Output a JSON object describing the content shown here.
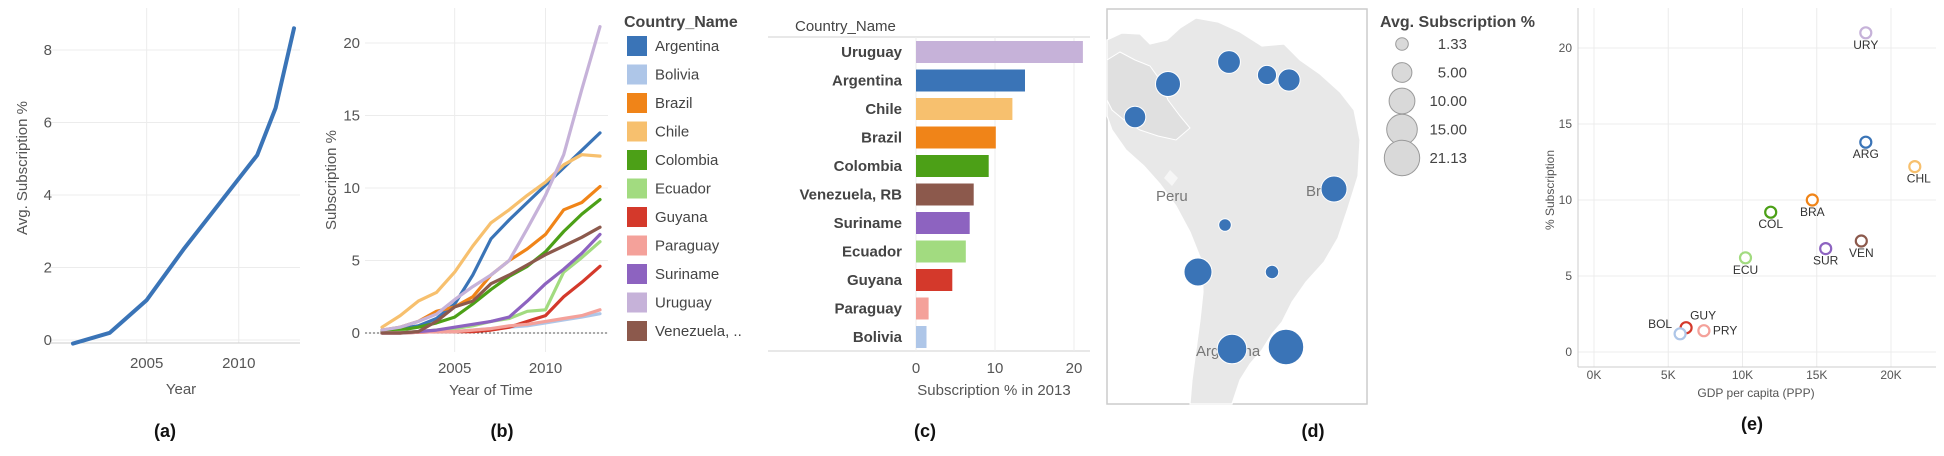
{
  "colors": {
    "Argentina": "#3a74b7",
    "Bolivia": "#aec6e8",
    "Brazil": "#f08418",
    "Chile": "#f7c06e",
    "Colombia": "#4ca017",
    "Ecuador": "#a2db80",
    "Guyana": "#d4392b",
    "Paraguay": "#f4a19a",
    "Suriname": "#8d63c0",
    "Uruguay": "#c6b2d9",
    "Venezuela": "#8c594c",
    "single": "#3a74b7",
    "map_bubble": "#3a74b7"
  },
  "chart_data": [
    {
      "id": "a",
      "type": "line",
      "panel_label": "(a)",
      "xlabel": "Year",
      "ylabel": "Avg. Subscription %",
      "x_ticks": [
        "2005",
        "2010"
      ],
      "y_ticks": [
        "0",
        "2",
        "4",
        "6",
        "8"
      ],
      "xlim": [
        2001,
        2013
      ],
      "ylim": [
        0,
        9
      ],
      "x": [
        2001,
        2003,
        2005,
        2007,
        2009,
        2011,
        2012,
        2013
      ],
      "values": [
        -0.1,
        0.2,
        1.1,
        2.5,
        3.8,
        5.1,
        6.4,
        8.6
      ]
    },
    {
      "id": "b",
      "type": "line",
      "panel_label": "(b)",
      "xlabel": "Year of Time",
      "ylabel": "Subscription %",
      "x_ticks": [
        "2005",
        "2010"
      ],
      "y_ticks": [
        "0",
        "5",
        "10",
        "15",
        "20"
      ],
      "xlim": [
        2001,
        2013
      ],
      "ylim": [
        0,
        22
      ],
      "legend_title": "Country_Name",
      "legend": [
        "Argentina",
        "Bolivia",
        "Brazil",
        "Chile",
        "Colombia",
        "Ecuador",
        "Guyana",
        "Paraguay",
        "Suriname",
        "Uruguay",
        "Venezuela, .."
      ],
      "x": [
        2001,
        2002,
        2003,
        2004,
        2005,
        2006,
        2007,
        2008,
        2009,
        2010,
        2011,
        2012,
        2013
      ],
      "series": [
        {
          "name": "Argentina",
          "color_key": "Argentina",
          "values": [
            0.2,
            0.3,
            0.5,
            1.0,
            2.0,
            4.0,
            6.5,
            7.8,
            9.0,
            10.2,
            11.4,
            12.6,
            13.8
          ]
        },
        {
          "name": "Bolivia",
          "color_key": "Bolivia",
          "values": [
            0.0,
            0.0,
            0.05,
            0.1,
            0.1,
            0.2,
            0.3,
            0.4,
            0.5,
            0.7,
            0.9,
            1.1,
            1.33
          ]
        },
        {
          "name": "Brazil",
          "color_key": "Brazil",
          "values": [
            0.2,
            0.4,
            0.8,
            1.5,
            1.8,
            2.5,
            4.0,
            5.0,
            5.8,
            6.8,
            8.5,
            9.0,
            10.1
          ]
        },
        {
          "name": "Chile",
          "color_key": "Chile",
          "values": [
            0.4,
            1.2,
            2.2,
            2.8,
            4.2,
            6.0,
            7.6,
            8.5,
            9.5,
            10.4,
            11.6,
            12.3,
            12.2
          ]
        },
        {
          "name": "Colombia",
          "color_key": "Colombia",
          "values": [
            0.1,
            0.2,
            0.4,
            0.7,
            1.1,
            2.0,
            3.0,
            3.9,
            4.6,
            5.6,
            7.0,
            8.2,
            9.2
          ]
        },
        {
          "name": "Ecuador",
          "color_key": "Ecuador",
          "values": [
            0.0,
            0.05,
            0.1,
            0.2,
            0.3,
            0.5,
            0.8,
            1.0,
            1.5,
            1.6,
            4.2,
            5.2,
            6.3
          ]
        },
        {
          "name": "Guyana",
          "color_key": "Guyana",
          "values": [
            0.0,
            0.0,
            0.05,
            0.1,
            0.1,
            0.1,
            0.2,
            0.4,
            0.8,
            1.2,
            2.5,
            3.5,
            4.6
          ]
        },
        {
          "name": "Paraguay",
          "color_key": "Paraguay",
          "values": [
            0.0,
            0.0,
            0.05,
            0.1,
            0.1,
            0.2,
            0.3,
            0.5,
            0.6,
            0.8,
            1.0,
            1.2,
            1.6
          ]
        },
        {
          "name": "Suriname",
          "color_key": "Suriname",
          "values": [
            0.0,
            0.0,
            0.1,
            0.2,
            0.4,
            0.6,
            0.8,
            1.1,
            2.2,
            3.4,
            4.4,
            5.5,
            6.8
          ]
        },
        {
          "name": "Uruguay",
          "color_key": "Uruguay",
          "values": [
            0.2,
            0.4,
            0.8,
            1.3,
            2.3,
            3.2,
            4.0,
            5.0,
            7.2,
            9.5,
            12.3,
            16.8,
            21.13
          ]
        },
        {
          "name": "Venezuela, RB",
          "color_key": "Venezuela",
          "values": [
            0.0,
            0.0,
            0.1,
            0.8,
            1.8,
            2.2,
            3.4,
            4.0,
            4.7,
            5.4,
            6.0,
            6.6,
            7.3
          ]
        }
      ]
    },
    {
      "id": "c",
      "type": "bar",
      "panel_label": "(c)",
      "orientation": "horizontal",
      "header": "Country_Name",
      "xlabel": "Subscription % in 2013",
      "x_ticks": [
        "0",
        "10",
        "20"
      ],
      "xlim": [
        0,
        21.5
      ],
      "categories": [
        "Uruguay",
        "Argentina",
        "Chile",
        "Brazil",
        "Colombia",
        "Venezuela, RB",
        "Suriname",
        "Ecuador",
        "Guyana",
        "Paraguay",
        "Bolivia"
      ],
      "color_keys": [
        "Uruguay",
        "Argentina",
        "Chile",
        "Brazil",
        "Colombia",
        "Venezuela",
        "Suriname",
        "Ecuador",
        "Guyana",
        "Paraguay",
        "Bolivia"
      ],
      "values": [
        21.13,
        13.8,
        12.2,
        10.1,
        9.2,
        7.3,
        6.8,
        6.3,
        4.6,
        1.6,
        1.33
      ]
    },
    {
      "id": "d",
      "type": "scatter",
      "subtype": "bubble-map",
      "panel_label": "(d)",
      "legend_title": "Avg. Subscription %",
      "size_legend": [
        "1.33",
        "5.00",
        "10.00",
        "15.00",
        "21.13"
      ],
      "map_labels": [
        "Peru",
        "Brazil",
        "Argentina"
      ],
      "bubbles": [
        {
          "country": "Colombia",
          "value": 9.2
        },
        {
          "country": "Venezuela",
          "value": 7.3
        },
        {
          "country": "Guyana",
          "value": 4.6
        },
        {
          "country": "Suriname",
          "value": 6.8
        },
        {
          "country": "Ecuador",
          "value": 6.3
        },
        {
          "country": "Brazil",
          "value": 10.1
        },
        {
          "country": "Bolivia",
          "value": 1.33
        },
        {
          "country": "Paraguay",
          "value": 1.6
        },
        {
          "country": "Chile",
          "value": 12.2
        },
        {
          "country": "Argentina",
          "value": 13.8
        },
        {
          "country": "Uruguay",
          "value": 21.13
        }
      ]
    },
    {
      "id": "e",
      "type": "scatter",
      "panel_label": "(e)",
      "xlabel": "GDP per capita (PPP)",
      "ylabel": "% Subscription",
      "x_ticks": [
        "0K",
        "5K",
        "10K",
        "15K",
        "20K"
      ],
      "y_ticks": [
        "0",
        "5",
        "10",
        "15",
        "20"
      ],
      "xlim": [
        0,
        22500
      ],
      "ylim": [
        0,
        22
      ],
      "points": [
        {
          "label": "URY",
          "x": 18300,
          "y": 21.0,
          "color_key": "Uruguay"
        },
        {
          "label": "ARG",
          "x": 18300,
          "y": 13.8,
          "color_key": "Argentina"
        },
        {
          "label": "CHL",
          "x": 21600,
          "y": 12.2,
          "color_key": "Chile"
        },
        {
          "label": "BRA",
          "x": 14700,
          "y": 10.0,
          "color_key": "Brazil"
        },
        {
          "label": "COL",
          "x": 11900,
          "y": 9.2,
          "color_key": "Colombia"
        },
        {
          "label": "VEN",
          "x": 18000,
          "y": 7.3,
          "color_key": "Venezuela"
        },
        {
          "label": "SUR",
          "x": 15600,
          "y": 6.8,
          "color_key": "Suriname"
        },
        {
          "label": "ECU",
          "x": 10200,
          "y": 6.2,
          "color_key": "Ecuador"
        },
        {
          "label": "GUY",
          "x": 6200,
          "y": 1.6,
          "color_key": "Guyana"
        },
        {
          "label": "BOL",
          "x": 5800,
          "y": 1.2,
          "color_key": "Bolivia"
        },
        {
          "label": "PRY",
          "x": 7400,
          "y": 1.4,
          "color_key": "Paraguay"
        }
      ]
    }
  ]
}
